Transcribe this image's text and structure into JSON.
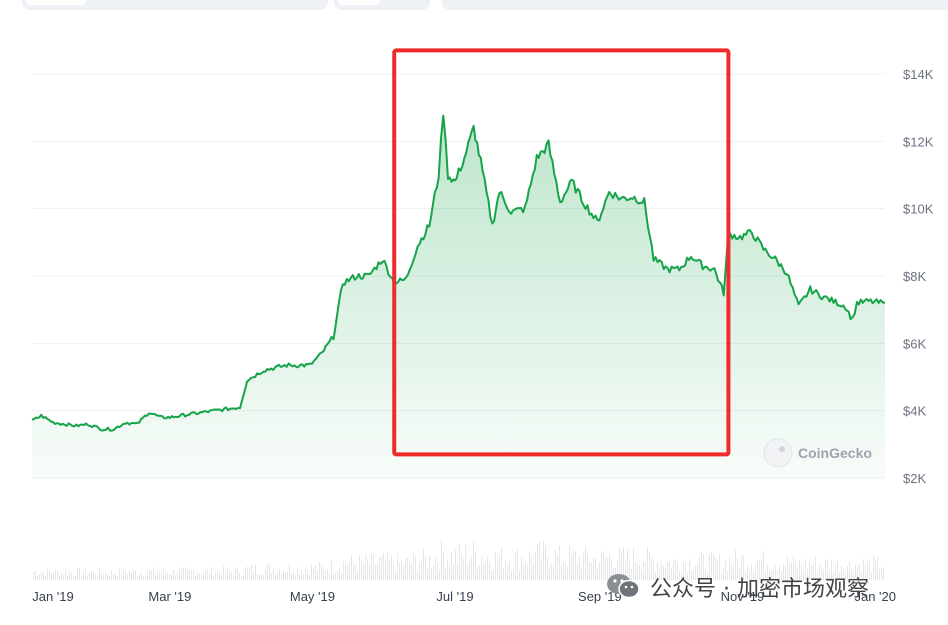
{
  "watermark": {
    "brand": "CoinGecko",
    "icon": "gecko-logo-icon"
  },
  "overlay": {
    "wechat_label": "公众号 · 加密市场观察",
    "wechat_icon": "wechat-icon"
  },
  "colors": {
    "line": "#16a34a",
    "fill": "#16a34a",
    "highlight_box": "#ef2b2b",
    "volume": "#e5e7eb",
    "grid": "#eef0f3"
  },
  "chart_data": {
    "type": "area",
    "title": "",
    "xlabel": "",
    "ylabel": "",
    "x_ticks": [
      "Jan '19",
      "Mar '19",
      "May '19",
      "Jul '19",
      "Sep '19",
      "Nov '19",
      "Jan '20"
    ],
    "y_ticks": [
      "$2K",
      "$4K",
      "$6K",
      "$8K",
      "$10K",
      "$12K",
      "$14K"
    ],
    "y_tick_values": [
      2000,
      4000,
      6000,
      8000,
      10000,
      12000,
      14000
    ],
    "ylim": [
      2000,
      14200
    ],
    "xlim": [
      "2019-01-01",
      "2020-01-01"
    ],
    "grid": true,
    "series": [
      {
        "values": [
          [
            "2019-01-01",
            3700
          ],
          [
            "2019-01-05",
            3850
          ],
          [
            "2019-01-10",
            3650
          ],
          [
            "2019-01-15",
            3600
          ],
          [
            "2019-01-20",
            3550
          ],
          [
            "2019-01-25",
            3600
          ],
          [
            "2019-01-31",
            3450
          ],
          [
            "2019-02-05",
            3450
          ],
          [
            "2019-02-10",
            3650
          ],
          [
            "2019-02-15",
            3600
          ],
          [
            "2019-02-20",
            3950
          ],
          [
            "2019-02-25",
            3800
          ],
          [
            "2019-03-01",
            3800
          ],
          [
            "2019-03-10",
            3900
          ],
          [
            "2019-03-20",
            4000
          ],
          [
            "2019-03-31",
            4100
          ],
          [
            "2019-04-03",
            4900
          ],
          [
            "2019-04-10",
            5200
          ],
          [
            "2019-04-20",
            5350
          ],
          [
            "2019-04-30",
            5350
          ],
          [
            "2019-05-05",
            5700
          ],
          [
            "2019-05-10",
            6200
          ],
          [
            "2019-05-14",
            7800
          ],
          [
            "2019-05-20",
            8000
          ],
          [
            "2019-05-25",
            8000
          ],
          [
            "2019-05-31",
            8500
          ],
          [
            "2019-06-05",
            7800
          ],
          [
            "2019-06-10",
            7900
          ],
          [
            "2019-06-15",
            8900
          ],
          [
            "2019-06-20",
            9500
          ],
          [
            "2019-06-24",
            11000
          ],
          [
            "2019-06-26",
            12900
          ],
          [
            "2019-06-28",
            11000
          ],
          [
            "2019-07-01",
            10800
          ],
          [
            "2019-07-05",
            11500
          ],
          [
            "2019-07-09",
            12400
          ],
          [
            "2019-07-12",
            11400
          ],
          [
            "2019-07-17",
            9500
          ],
          [
            "2019-07-20",
            10500
          ],
          [
            "2019-07-25",
            9900
          ],
          [
            "2019-07-31",
            10000
          ],
          [
            "2019-08-05",
            11500
          ],
          [
            "2019-08-10",
            11900
          ],
          [
            "2019-08-15",
            10200
          ],
          [
            "2019-08-20",
            10800
          ],
          [
            "2019-08-25",
            10200
          ],
          [
            "2019-08-31",
            9600
          ],
          [
            "2019-09-05",
            10500
          ],
          [
            "2019-09-10",
            10300
          ],
          [
            "2019-09-15",
            10350
          ],
          [
            "2019-09-20",
            10200
          ],
          [
            "2019-09-24",
            8500
          ],
          [
            "2019-09-30",
            8200
          ],
          [
            "2019-10-05",
            8200
          ],
          [
            "2019-10-10",
            8600
          ],
          [
            "2019-10-15",
            8300
          ],
          [
            "2019-10-20",
            8200
          ],
          [
            "2019-10-24",
            7500
          ],
          [
            "2019-10-26",
            9250
          ],
          [
            "2019-10-31",
            9150
          ],
          [
            "2019-11-05",
            9300
          ],
          [
            "2019-11-10",
            8800
          ],
          [
            "2019-11-15",
            8500
          ],
          [
            "2019-11-20",
            8100
          ],
          [
            "2019-11-25",
            7100
          ],
          [
            "2019-11-30",
            7600
          ],
          [
            "2019-12-05",
            7400
          ],
          [
            "2019-12-10",
            7250
          ],
          [
            "2019-12-15",
            7100
          ],
          [
            "2019-12-18",
            6700
          ],
          [
            "2019-12-20",
            7200
          ],
          [
            "2019-12-25",
            7250
          ],
          [
            "2019-12-31",
            7200
          ],
          [
            "2020-01-01",
            7200
          ]
        ]
      }
    ],
    "highlight_range": [
      "2019-06-05",
      "2019-10-26"
    ],
    "highlight_y_range": [
      2700,
      14700
    ]
  }
}
